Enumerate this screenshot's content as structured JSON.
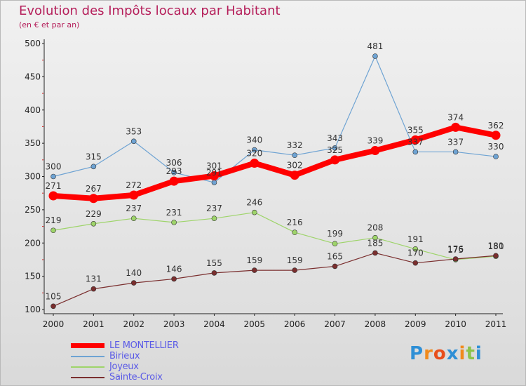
{
  "header": {
    "title": "Evolution des Impôts locaux par Habitant",
    "subtitle": "(en € et par an)"
  },
  "brand": {
    "name": "Proxiti",
    "letters": [
      "P",
      "r",
      "o",
      "x",
      "i",
      "t",
      "i"
    ],
    "letter_colors": [
      "#2e8fd6",
      "#f08a1c",
      "#e84e1b",
      "#2e8fd6",
      "#f08a1c",
      "#8bc34a",
      "#2e8fd6"
    ]
  },
  "chart_data": {
    "type": "line",
    "title": "Evolution des Impôts locaux par Habitant",
    "subtitle": "(en € et par an)",
    "x": [
      "2000",
      "2001",
      "2002",
      "2003",
      "2004",
      "2005",
      "2006",
      "2007",
      "2008",
      "2009",
      "2010",
      "2011"
    ],
    "ylim": [
      100,
      500
    ],
    "yticks": [
      100,
      150,
      200,
      250,
      300,
      350,
      400,
      450,
      500
    ],
    "grid": false,
    "legend_position": "bottom-left",
    "series": [
      {
        "name": "LE MONTELLIER",
        "color": "#ff0000",
        "bold": true,
        "values": [
          271,
          267,
          272,
          293,
          301,
          320,
          302,
          325,
          339,
          355,
          374,
          362
        ],
        "labels": [
          "271",
          "267",
          "272",
          "293",
          "301",
          "320",
          "302",
          "325",
          "339",
          "355",
          "374",
          "362"
        ]
      },
      {
        "name": "Birieux",
        "color": "#6ea3d3",
        "values": [
          300,
          315,
          353,
          306,
          291,
          340,
          332,
          343,
          481,
          337,
          337,
          330
        ],
        "labels": [
          "300",
          "315",
          "353",
          "306",
          "291",
          "340",
          "332",
          "343",
          "481",
          "337",
          "337",
          "330"
        ]
      },
      {
        "name": "Joyeux",
        "color": "#9ed46a",
        "values": [
          219,
          229,
          237,
          231,
          237,
          246,
          216,
          199,
          208,
          191,
          175,
          180
        ],
        "labels": [
          "219",
          "229",
          "237",
          "231",
          "237",
          "246",
          "216",
          "199",
          "208",
          "191",
          "175",
          "180"
        ]
      },
      {
        "name": "Sainte-Croix",
        "color": "#7a2e2e",
        "values": [
          105,
          131,
          140,
          146,
          155,
          159,
          159,
          165,
          185,
          170,
          176,
          181
        ],
        "labels": [
          "105",
          "131",
          "140",
          "146",
          "155",
          "159",
          "159",
          "165",
          "185",
          "170",
          "176",
          "181"
        ]
      }
    ]
  }
}
